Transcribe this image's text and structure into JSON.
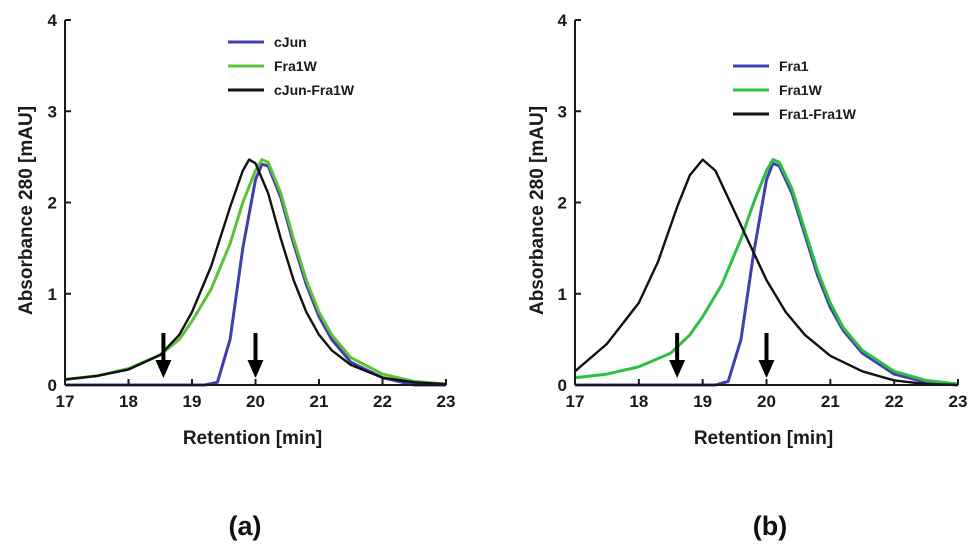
{
  "colors": {
    "axis": "#1a1a1a",
    "arrow": "#000000"
  },
  "chart_data": [
    {
      "type": "line",
      "panel_label": "(a)",
      "xlabel": "Retention [min]",
      "ylabel": "Absorbance 280 [mAU]",
      "xlim": [
        17,
        23
      ],
      "ylim": [
        0,
        4
      ],
      "xticks": [
        17,
        18,
        19,
        20,
        21,
        22,
        23
      ],
      "yticks": [
        0,
        1,
        2,
        3,
        4
      ],
      "legend_position": "top-right",
      "arrows_x": [
        18.55,
        20.0
      ],
      "series": [
        {
          "name": "cJun",
          "color": "#3f3fae",
          "points": [
            [
              17,
              0
            ],
            [
              19.2,
              0
            ],
            [
              19.4,
              0.03
            ],
            [
              19.6,
              0.5
            ],
            [
              19.8,
              1.5
            ],
            [
              20.0,
              2.25
            ],
            [
              20.1,
              2.42
            ],
            [
              20.2,
              2.4
            ],
            [
              20.4,
              2.05
            ],
            [
              20.6,
              1.55
            ],
            [
              20.8,
              1.1
            ],
            [
              21.0,
              0.75
            ],
            [
              21.2,
              0.5
            ],
            [
              21.5,
              0.25
            ],
            [
              22.0,
              0.08
            ],
            [
              22.5,
              0.0
            ],
            [
              23.0,
              0.0
            ]
          ]
        },
        {
          "name": "Fra1W",
          "color": "#5bc23a",
          "points": [
            [
              17,
              0.06
            ],
            [
              17.5,
              0.1
            ],
            [
              18.0,
              0.18
            ],
            [
              18.5,
              0.33
            ],
            [
              18.8,
              0.5
            ],
            [
              19.0,
              0.7
            ],
            [
              19.3,
              1.05
            ],
            [
              19.6,
              1.55
            ],
            [
              19.8,
              2.0
            ],
            [
              20.0,
              2.35
            ],
            [
              20.1,
              2.47
            ],
            [
              20.2,
              2.44
            ],
            [
              20.4,
              2.1
            ],
            [
              20.6,
              1.6
            ],
            [
              20.8,
              1.15
            ],
            [
              21.0,
              0.8
            ],
            [
              21.2,
              0.55
            ],
            [
              21.5,
              0.3
            ],
            [
              22.0,
              0.12
            ],
            [
              22.5,
              0.04
            ],
            [
              23.0,
              0.01
            ]
          ]
        },
        {
          "name": "cJun-Fra1W",
          "color": "#111111",
          "points": [
            [
              17,
              0.06
            ],
            [
              17.5,
              0.1
            ],
            [
              18.0,
              0.17
            ],
            [
              18.5,
              0.33
            ],
            [
              18.8,
              0.55
            ],
            [
              19.0,
              0.8
            ],
            [
              19.3,
              1.3
            ],
            [
              19.6,
              1.95
            ],
            [
              19.8,
              2.35
            ],
            [
              19.9,
              2.47
            ],
            [
              20.0,
              2.43
            ],
            [
              20.2,
              2.1
            ],
            [
              20.4,
              1.6
            ],
            [
              20.6,
              1.15
            ],
            [
              20.8,
              0.8
            ],
            [
              21.0,
              0.55
            ],
            [
              21.2,
              0.38
            ],
            [
              21.5,
              0.22
            ],
            [
              22.0,
              0.08
            ],
            [
              22.5,
              0.03
            ],
            [
              23.0,
              0.01
            ]
          ]
        }
      ]
    },
    {
      "type": "line",
      "panel_label": "(b)",
      "xlabel": "Retention [min]",
      "ylabel": "Absorbance 280 [mAU]",
      "xlim": [
        17,
        23
      ],
      "ylim": [
        0,
        4
      ],
      "xticks": [
        17,
        18,
        19,
        20,
        21,
        22,
        23
      ],
      "yticks": [
        0,
        1,
        2,
        3,
        4
      ],
      "legend_position": "top-right",
      "arrows_x": [
        18.6,
        20.0
      ],
      "series": [
        {
          "name": "Fra1",
          "color": "#3f3fae",
          "points": [
            [
              17,
              0
            ],
            [
              19.2,
              0
            ],
            [
              19.4,
              0.04
            ],
            [
              19.6,
              0.5
            ],
            [
              19.8,
              1.45
            ],
            [
              20.0,
              2.25
            ],
            [
              20.1,
              2.43
            ],
            [
              20.2,
              2.4
            ],
            [
              20.4,
              2.1
            ],
            [
              20.6,
              1.65
            ],
            [
              20.8,
              1.2
            ],
            [
              21.0,
              0.85
            ],
            [
              21.2,
              0.6
            ],
            [
              21.5,
              0.35
            ],
            [
              22.0,
              0.12
            ],
            [
              22.5,
              0.03
            ],
            [
              23.0,
              0.0
            ]
          ]
        },
        {
          "name": "Fra1W",
          "color": "#2fbf45",
          "points": [
            [
              17,
              0.08
            ],
            [
              17.5,
              0.12
            ],
            [
              18.0,
              0.2
            ],
            [
              18.5,
              0.35
            ],
            [
              18.8,
              0.55
            ],
            [
              19.0,
              0.75
            ],
            [
              19.3,
              1.1
            ],
            [
              19.6,
              1.6
            ],
            [
              19.8,
              2.0
            ],
            [
              20.0,
              2.35
            ],
            [
              20.1,
              2.47
            ],
            [
              20.2,
              2.44
            ],
            [
              20.4,
              2.15
            ],
            [
              20.6,
              1.7
            ],
            [
              20.8,
              1.25
            ],
            [
              21.0,
              0.9
            ],
            [
              21.2,
              0.63
            ],
            [
              21.5,
              0.38
            ],
            [
              22.0,
              0.15
            ],
            [
              22.5,
              0.05
            ],
            [
              23.0,
              0.01
            ]
          ]
        },
        {
          "name": "Fra1-Fra1W",
          "color": "#111111",
          "points": [
            [
              17,
              0.15
            ],
            [
              17.5,
              0.45
            ],
            [
              18.0,
              0.9
            ],
            [
              18.3,
              1.35
            ],
            [
              18.6,
              1.95
            ],
            [
              18.8,
              2.3
            ],
            [
              19.0,
              2.47
            ],
            [
              19.2,
              2.35
            ],
            [
              19.5,
              1.9
            ],
            [
              19.8,
              1.45
            ],
            [
              20.0,
              1.15
            ],
            [
              20.3,
              0.8
            ],
            [
              20.6,
              0.55
            ],
            [
              21.0,
              0.32
            ],
            [
              21.5,
              0.15
            ],
            [
              22.0,
              0.05
            ],
            [
              22.5,
              0.01
            ],
            [
              23.0,
              0.0
            ]
          ]
        }
      ]
    }
  ]
}
